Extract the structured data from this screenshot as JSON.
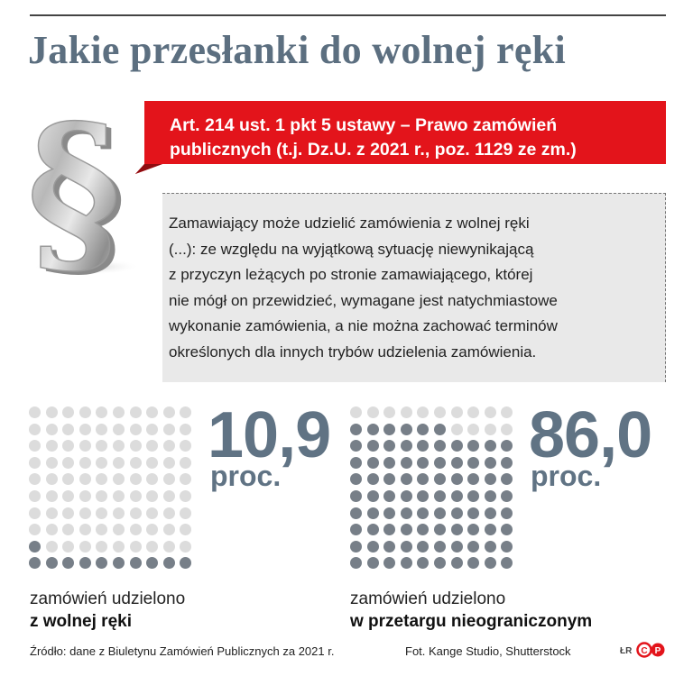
{
  "title": "Jakie przesłanki do wolnej ręki",
  "banner": {
    "line1": "Art. 214 ust. 1 pkt 5 ustawy – Prawo zamówień",
    "line2": "publicznych (t.j. Dz.U. z 2021 r., poz. 1129 ze zm.)"
  },
  "quote": {
    "lines": [
      "Zamawiający może udzielić zamówienia z wolnej ręki",
      "(...): ze względu na wyjątkową sytuację niewynikającą",
      "z przyczyn leżących po stronie zamawiającego, której",
      "nie mógł on przewidzieć, wymagane jest natychmiastowe",
      "wykonanie zamówienia, a nie można zachować terminów",
      "określonych dla innych trybów udzielenia zamówienia."
    ]
  },
  "chart_data": [
    {
      "type": "other",
      "value": 10.9,
      "value_label": "10,9",
      "unit_label": "proc.",
      "caption_line1": "zamówień udzielono",
      "caption_line2": "z wolnej ręki",
      "filled_dots": 11,
      "total_dots": 100,
      "filled_color": "#777f88",
      "empty_color": "#dcdcdc"
    },
    {
      "type": "other",
      "value": 86.0,
      "value_label": "86,0",
      "unit_label": "proc.",
      "caption_line1": "zamówień udzielono",
      "caption_line2": "w przetargu nieograniczonym",
      "filled_dots": 86,
      "total_dots": 100,
      "filled_color": "#777f88",
      "empty_color": "#dcdcdc"
    }
  ],
  "footer": {
    "source": "Źródło: dane z Biuletynu Zamówień Publicznych za 2021 r.",
    "photo": "Fot. Kange Studio,  Shutterstock",
    "initials": "ŁR"
  },
  "colors": {
    "title": "#5c6f80",
    "banner_red": "#e3141b",
    "number": "#607384",
    "quote_bg": "#e9e9e9"
  },
  "icons": {
    "section": "section-sign-icon",
    "logo": "cp-logo-icon"
  }
}
